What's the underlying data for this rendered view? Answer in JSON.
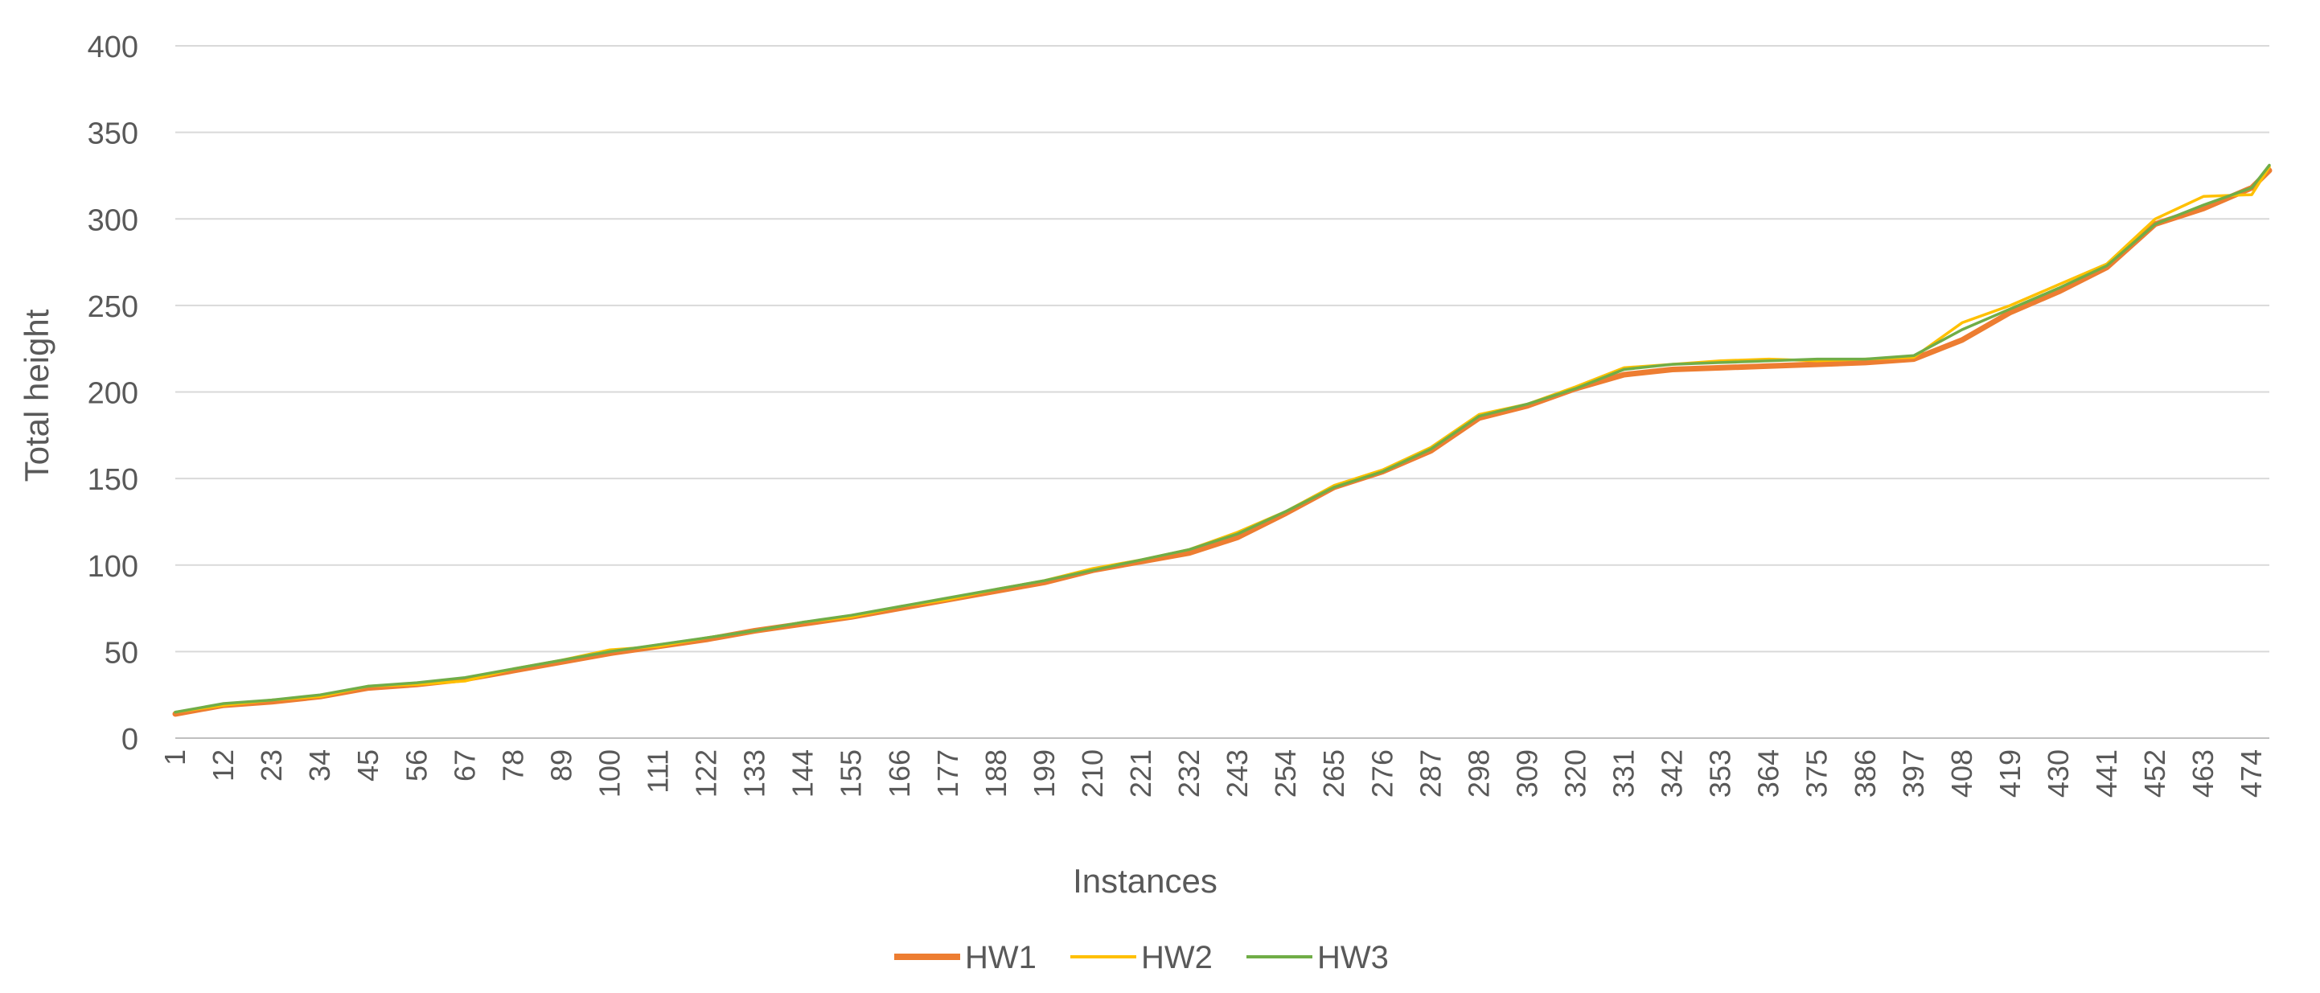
{
  "chart_data": {
    "type": "line",
    "xlabel": "Instances",
    "ylabel": "Total height",
    "ylim": [
      0,
      400
    ],
    "yticks": [
      0,
      50,
      100,
      150,
      200,
      250,
      300,
      350,
      400
    ],
    "x_range": [
      1,
      478
    ],
    "x_tick_labels": [
      "1",
      "12",
      "23",
      "34",
      "45",
      "56",
      "67",
      "78",
      "89",
      "100",
      "111",
      "122",
      "133",
      "144",
      "155",
      "166",
      "177",
      "188",
      "199",
      "210",
      "221",
      "232",
      "243",
      "254",
      "265",
      "276",
      "287",
      "298",
      "309",
      "320",
      "331",
      "342",
      "353",
      "364",
      "375",
      "386",
      "397",
      "408",
      "419",
      "430",
      "441",
      "452",
      "463",
      "474"
    ],
    "grid": "horizontal",
    "legend_position": "bottom",
    "x": [
      1,
      12,
      23,
      34,
      45,
      56,
      67,
      78,
      89,
      100,
      111,
      122,
      133,
      144,
      155,
      166,
      177,
      188,
      199,
      210,
      221,
      232,
      243,
      254,
      265,
      276,
      287,
      298,
      309,
      320,
      331,
      342,
      353,
      364,
      375,
      386,
      397,
      408,
      419,
      430,
      441,
      452,
      463,
      474,
      478
    ],
    "series": [
      {
        "name": "HW1",
        "color": "#ED7D31",
        "values": [
          14,
          19,
          21,
          24,
          29,
          31,
          34,
          39,
          44,
          49,
          53,
          57,
          62,
          66,
          70,
          75,
          80,
          85,
          90,
          97,
          102,
          107,
          116,
          130,
          145,
          154,
          166,
          185,
          192,
          202,
          210,
          213,
          214,
          215,
          216,
          217,
          219,
          230,
          246,
          258,
          272,
          297,
          306,
          318,
          328
        ]
      },
      {
        "name": "HW2",
        "color": "#FFC000",
        "values": [
          15,
          19,
          22,
          24,
          30,
          31,
          33,
          40,
          45,
          51,
          53,
          58,
          62,
          67,
          70,
          76,
          80,
          86,
          91,
          98,
          103,
          109,
          119,
          131,
          146,
          155,
          168,
          187,
          193,
          203,
          214,
          216,
          218,
          219,
          218,
          219,
          220,
          240,
          250,
          262,
          274,
          300,
          313,
          314,
          330
        ]
      },
      {
        "name": "HW3",
        "color": "#70AD47",
        "values": [
          15,
          20,
          22,
          25,
          30,
          32,
          35,
          40,
          45,
          50,
          54,
          58,
          62,
          67,
          71,
          76,
          81,
          86,
          91,
          97,
          103,
          109,
          118,
          131,
          145,
          154,
          167,
          186,
          193,
          202,
          213,
          216,
          217,
          218,
          219,
          219,
          221,
          236,
          248,
          260,
          273,
          297,
          308,
          318,
          331
        ]
      }
    ]
  }
}
